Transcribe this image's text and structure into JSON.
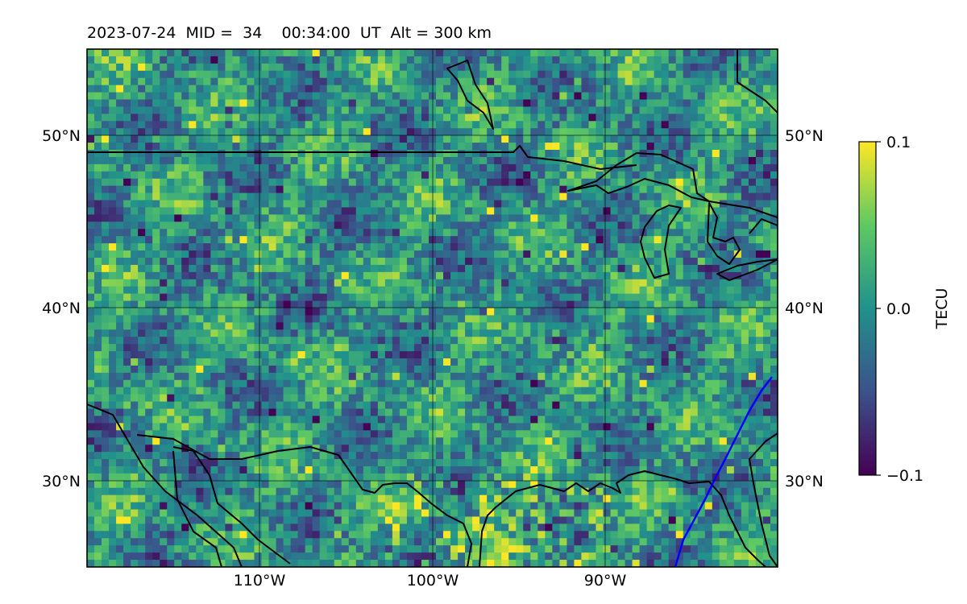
{
  "title": "2023-07-24  MID =  34    00:34:00  UT  Alt = 300 km",
  "map": {
    "lon_range": [
      -120,
      -80
    ],
    "lat_range": [
      25,
      55
    ],
    "lon_ticks": [
      {
        "value": -110,
        "label": "110°W"
      },
      {
        "value": -100,
        "label": "100°W"
      },
      {
        "value": -90,
        "label": "90°W"
      }
    ],
    "lat_ticks": [
      {
        "value": 50,
        "label": "50°N"
      },
      {
        "value": 40,
        "label": "40°N"
      },
      {
        "value": 30,
        "label": "30°N"
      }
    ],
    "colormap": [
      "#440154",
      "#3b528b",
      "#21918c",
      "#5ec962",
      "#fde725"
    ],
    "coastline_color": "#000000",
    "terminator_color": "#0000ff"
  },
  "colorbar": {
    "label": "TECU",
    "range": [
      -0.1,
      0.1
    ],
    "ticks": [
      {
        "value": 0.1,
        "label": "0.1"
      },
      {
        "value": 0.0,
        "label": "0.0"
      },
      {
        "value": -0.1,
        "label": "−0.1"
      }
    ]
  },
  "chart_data": {
    "type": "heatmap",
    "title": "2023-07-24  MID =  34    00:34:00  UT  Alt = 300 km",
    "xlabel": "",
    "ylabel": "",
    "x_range": [
      -120,
      -80
    ],
    "y_range": [
      25,
      55
    ],
    "value_range": [
      -0.1,
      0.1
    ],
    "value_label": "TECU",
    "grid": true
  }
}
